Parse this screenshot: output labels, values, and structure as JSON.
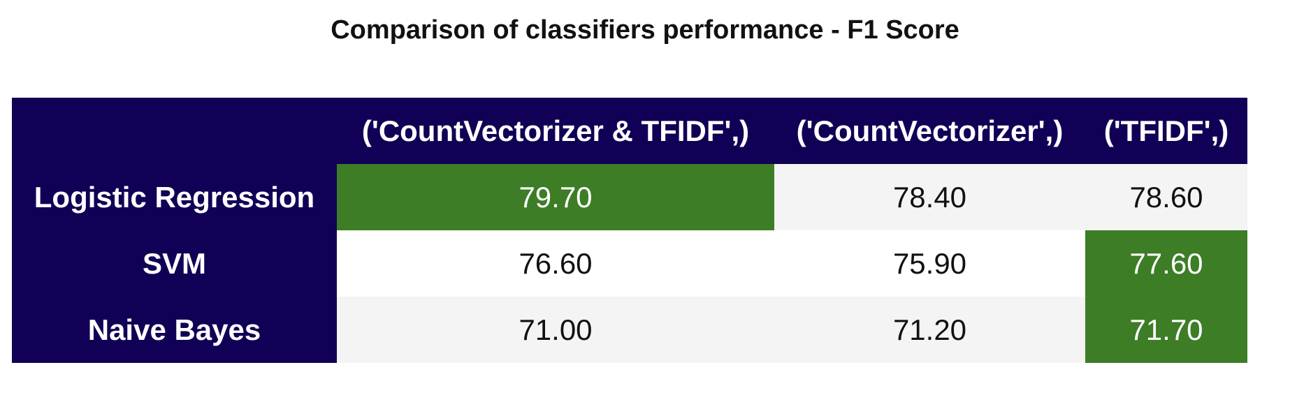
{
  "chart_data": {
    "type": "table",
    "title": "Comparison of classifiers performance - F1 Score",
    "columns": [
      "('CountVectorizer & TFIDF',)",
      "('CountVectorizer',)",
      "('TFIDF',)"
    ],
    "rows": [
      {
        "label": "Logistic Regression",
        "values": [
          "79.70",
          "78.40",
          "78.60"
        ],
        "highlight": 0
      },
      {
        "label": "SVM",
        "values": [
          "76.60",
          "75.90",
          "77.60"
        ],
        "highlight": 2
      },
      {
        "label": "Naive Bayes",
        "values": [
          "71.00",
          "71.20",
          "71.70"
        ],
        "highlight": 2
      }
    ],
    "colors": {
      "header_bg": "#110055",
      "highlight_bg": "#3c7d26",
      "row_alt_bg": "#f4f4f4"
    }
  }
}
